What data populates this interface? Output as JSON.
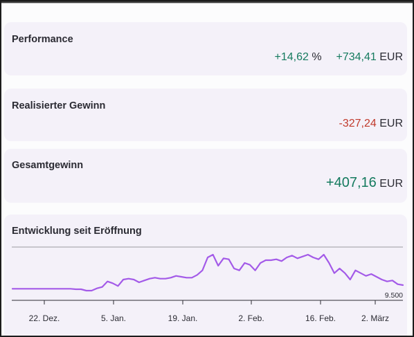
{
  "performance": {
    "title": "Performance",
    "percent": "+14,62",
    "percent_unit": "%",
    "amount": "+734,41",
    "amount_unit": "EUR"
  },
  "realized": {
    "title": "Realisierter Gewinn",
    "amount": "-327,24",
    "amount_unit": "EUR"
  },
  "total": {
    "title": "Gesamtgewinn",
    "amount": "+407,16",
    "amount_unit": "EUR"
  },
  "chart_section": {
    "title": "Entwicklung seit Eröffnung"
  },
  "chart_data": {
    "type": "line",
    "reference_label": "9.500",
    "x_ticks": [
      "22. Dez.",
      "5. Jan.",
      "19. Jan.",
      "2. Feb.",
      "16. Feb.",
      "2. März"
    ],
    "series_color": "#a35ae8",
    "grid": false,
    "values": [
      10,
      10,
      10,
      10,
      10,
      10,
      10,
      10,
      10,
      10,
      10,
      10,
      9.5,
      9.5,
      8,
      8,
      10.5,
      12,
      18,
      16,
      13,
      20,
      21,
      20,
      17,
      19,
      21,
      22,
      21,
      21,
      22,
      24,
      23,
      22,
      22,
      25,
      30,
      44,
      47,
      35,
      43,
      42,
      32,
      30,
      38,
      36,
      30,
      38,
      41,
      41,
      42,
      40,
      44,
      46,
      43,
      45,
      47,
      44,
      42,
      47,
      38,
      27,
      32,
      27,
      20,
      30,
      27,
      24,
      26,
      23,
      20,
      18,
      19,
      15,
      14
    ],
    "value_unit": "relative"
  }
}
